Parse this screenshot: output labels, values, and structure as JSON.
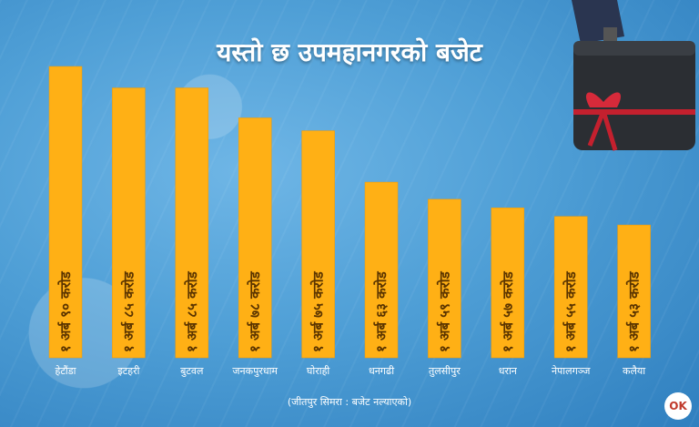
{
  "chart_data": {
    "type": "bar",
    "title": "यस्तो छ उपमहानगरको बजेट",
    "categories": [
      "हेटौंडा",
      "इटहरी",
      "बुटवल",
      "जनकपुरधाम",
      "घोराही",
      "धनगढी",
      "तुलसीपुर",
      "धरान",
      "नेपालगञ्ज",
      "कलैया"
    ],
    "values": [
      190,
      185,
      185,
      178,
      175,
      163,
      159,
      157,
      155,
      153
    ],
    "value_labels": [
      "१ अर्ब ९० करोड",
      "१ अर्ब ८५ करोड",
      "१ अर्ब ८५ करोड",
      "१ अर्ब ७८ करोड",
      "१ अर्ब ७५ करोड",
      "१ अर्ब ६३ करोड",
      "१ अर्ब ५९ करोड",
      "१ अर्ब ५७ करोड",
      "१ अर्ब ५५ करोड",
      "१ अर्ब ५३ करोड"
    ],
    "ylim": [
      0,
      190
    ],
    "grid": false,
    "legend": "none"
  },
  "source_text": "(जीतपुर सिमरा :  बजेट नल्याएको)",
  "logo_text": "OK",
  "colors": {
    "bar": "#ffb015",
    "bar_edge": "#f39a00",
    "label": "#5a3400",
    "background": "#4f9fd6"
  },
  "icons": {
    "briefcase": "briefcase-icon",
    "logo": "onlinekhabar-logo"
  }
}
